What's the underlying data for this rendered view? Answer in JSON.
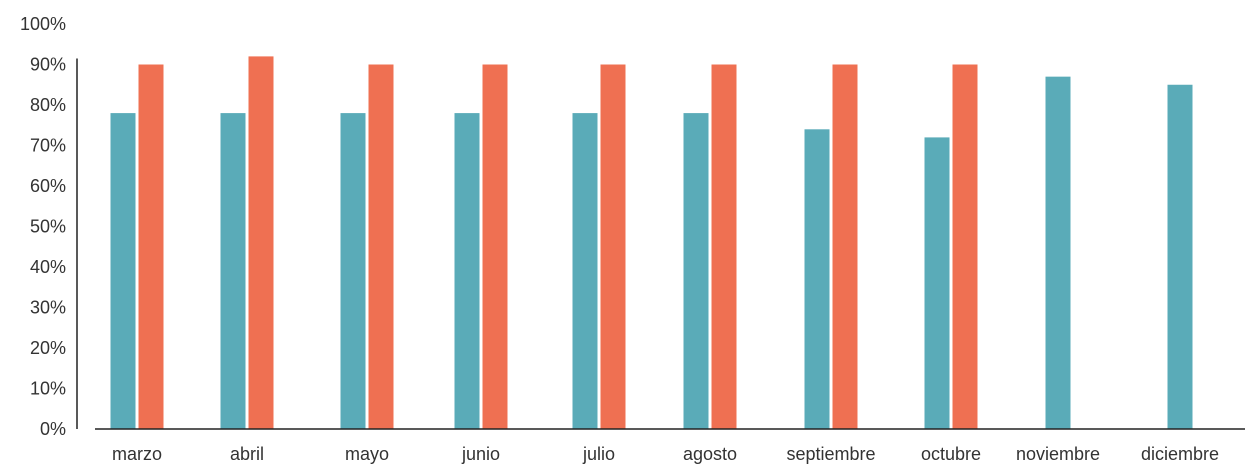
{
  "chart_data": {
    "type": "bar",
    "title": "",
    "xlabel": "",
    "ylabel": "",
    "ylim": [
      0,
      100
    ],
    "yticks": [
      "0%",
      "10%",
      "20%",
      "30%",
      "40%",
      "50%",
      "60%",
      "70%",
      "80%",
      "90%",
      "100%"
    ],
    "categories": [
      "marzo",
      "abril",
      "mayo",
      "junio",
      "julio",
      "agosto",
      "septiembre",
      "octubre",
      "noviembre",
      "diciembre"
    ],
    "series": [
      {
        "values": [
          78,
          78,
          78,
          78,
          78,
          78,
          74,
          72,
          87,
          85
        ],
        "color": "#5aabb8"
      },
      {
        "values": [
          90,
          92,
          90,
          90,
          90,
          90,
          90,
          90,
          null,
          null
        ],
        "color": "#ef7052"
      }
    ],
    "grid": false,
    "legend": "none"
  }
}
